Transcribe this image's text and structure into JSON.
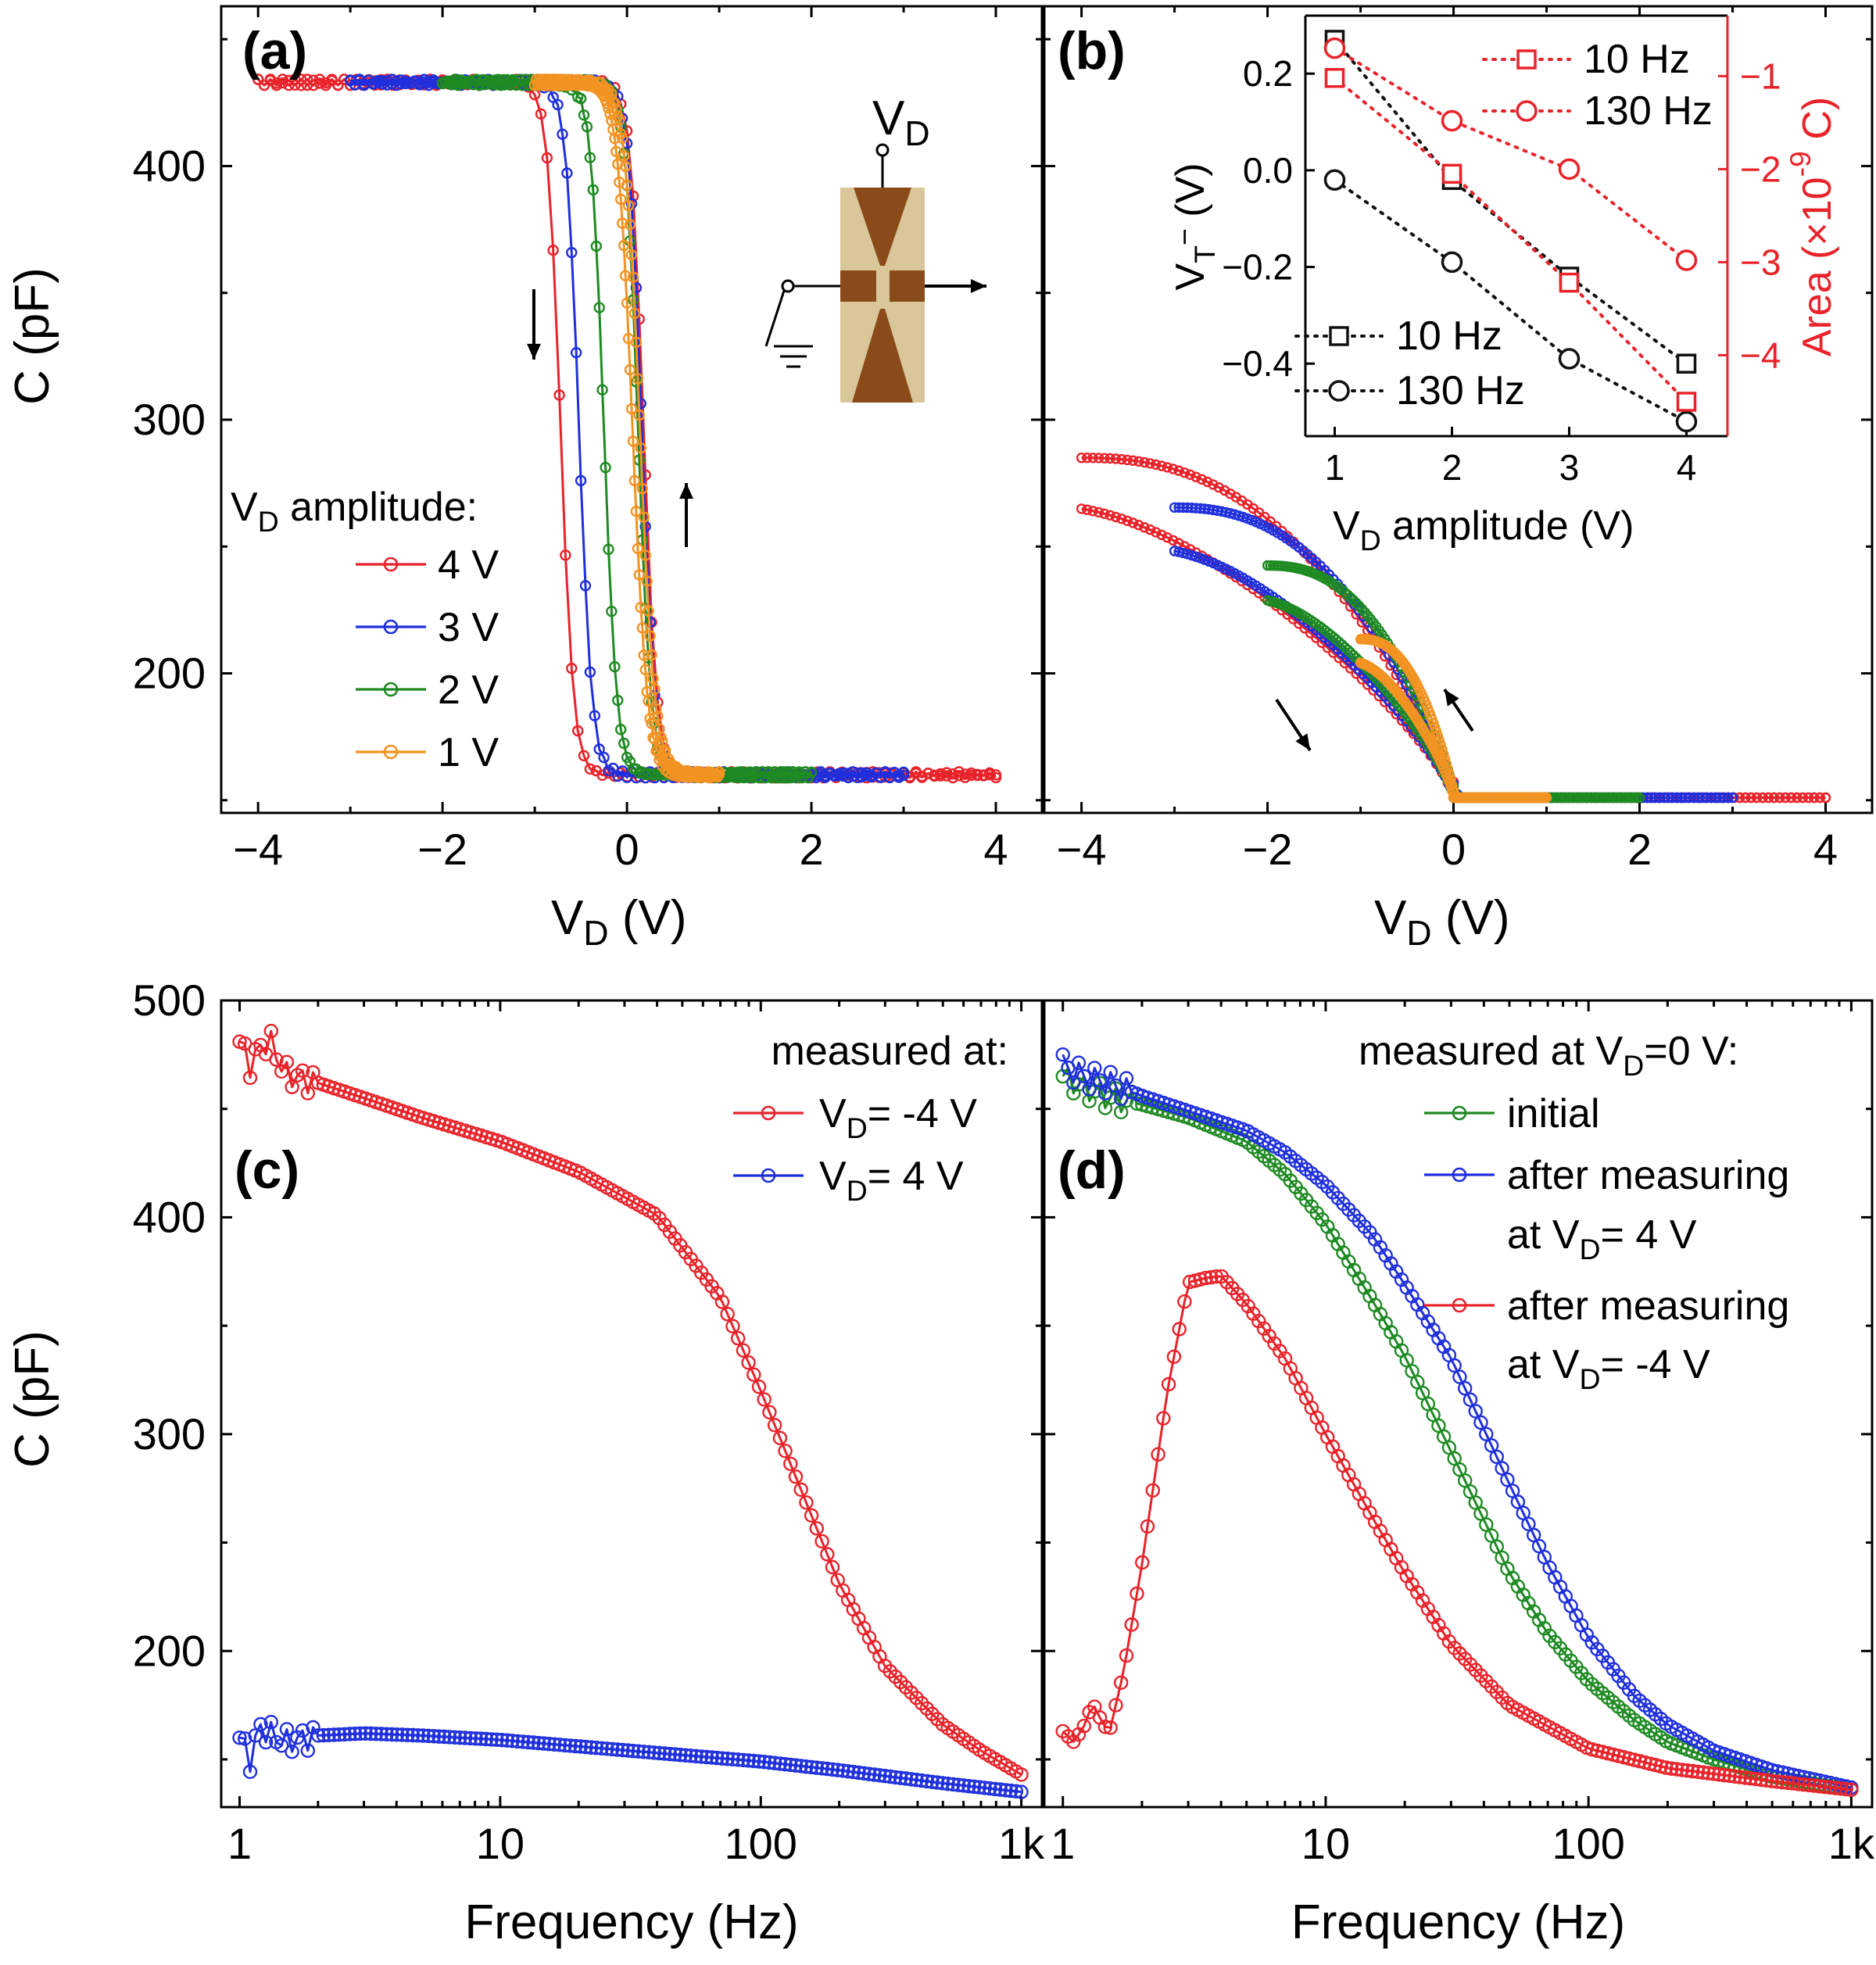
{
  "colors": {
    "red": "#e8232a",
    "blue": "#1f2fdc",
    "green": "#1e8a22",
    "orange": "#f39322",
    "black": "#111111",
    "electrode": "#8a4a1a",
    "substrate": "#d9c79a"
  },
  "chart_data": [
    {
      "id": "a",
      "type": "line",
      "panel_label": "(a)",
      "xlabel_main": "V",
      "xlabel_sub": "D",
      "xlabel_tail": " (V)",
      "ylabel": "C (pF)",
      "xlim": [
        -4.4,
        4.5
      ],
      "ylim": [
        145,
        463
      ],
      "xticks": [
        -4,
        -2,
        0,
        2,
        4
      ],
      "xtick_labels": [
        "−4",
        "−2",
        "0",
        "2",
        "4"
      ],
      "yticks": [
        200,
        300,
        400
      ],
      "ytick_labels": [
        "200",
        "300",
        "400"
      ],
      "legend_title_main": "V",
      "legend_title_sub": "D",
      "legend_title_tail": " amplitude:",
      "inset_label_main": "V",
      "inset_label_sub": "D",
      "series": [
        {
          "name": "4 V",
          "color": "red",
          "amp": 4,
          "vdown": -0.72,
          "vup": 0.18,
          "w": 0.07
        },
        {
          "name": "3 V",
          "color": "blue",
          "amp": 3,
          "vdown": -0.52,
          "vup": 0.16,
          "w": 0.07
        },
        {
          "name": "2 V",
          "color": "green",
          "amp": 2,
          "vdown": -0.25,
          "vup": 0.12,
          "w": 0.07
        },
        {
          "name": "1 V",
          "color": "orange",
          "amp": 1,
          "vdown": 0.06,
          "vup": 0.14,
          "w": 0.08
        }
      ],
      "c_high": 433,
      "c_low": 160
    },
    {
      "id": "b",
      "type": "line",
      "panel_label": "(b)",
      "xlabel_main": "V",
      "xlabel_sub": "D",
      "xlabel_tail": " (V)",
      "xlim": [
        -4.4,
        4.5
      ],
      "ylim": [
        145,
        463
      ],
      "xticks": [
        -4,
        -2,
        0,
        2,
        4
      ],
      "xtick_labels": [
        "−4",
        "−2",
        "0",
        "2",
        "4"
      ],
      "series": [
        {
          "color": "red",
          "amp": 4
        },
        {
          "color": "blue",
          "amp": 3
        },
        {
          "color": "green",
          "amp": 2
        },
        {
          "color": "orange",
          "amp": 1
        }
      ]
    },
    {
      "id": "b-inset",
      "type": "scatter",
      "xlabel_main": "V",
      "xlabel_sub": "D",
      "xlabel_tail": " amplitude (V)",
      "ylabel_main": "V",
      "ylabel_sub": "T",
      "ylabel_sup": "−",
      "ylabel_tail": " (V)",
      "y2label_main": "Area (×10",
      "y2label_sup": "-9",
      "y2label_tail": " C)",
      "x": [
        1,
        2,
        3,
        4
      ],
      "xlim": [
        0.75,
        4.35
      ],
      "xticks": [
        1,
        2,
        3,
        4
      ],
      "xtick_labels": [
        "1",
        "2",
        "3",
        "4"
      ],
      "ylim": [
        -0.55,
        0.32
      ],
      "yticks": [
        0.2,
        0.0,
        -0.2,
        -0.4
      ],
      "ytick_labels": [
        "0.2",
        "0.0",
        "−0.2",
        "−0.4"
      ],
      "y2lim": [
        -4.87,
        -0.35
      ],
      "y2ticks": [
        -1,
        -2,
        -3,
        -4
      ],
      "y2tick_labels": [
        "−1",
        "−2",
        "−3",
        "−4"
      ],
      "series": [
        {
          "name": "10 Hz",
          "axis": "left",
          "marker": "square",
          "color": "black",
          "values": [
            0.27,
            -0.02,
            -0.22,
            -0.4
          ]
        },
        {
          "name": "130 Hz",
          "axis": "left",
          "marker": "circle",
          "color": "black",
          "values": [
            -0.02,
            -0.19,
            -0.39,
            -0.52
          ]
        },
        {
          "name": "10 Hz",
          "axis": "right",
          "marker": "square",
          "color": "red",
          "values": [
            -1.02,
            -2.05,
            -3.22,
            -4.5
          ]
        },
        {
          "name": "130 Hz",
          "axis": "right",
          "marker": "circle",
          "color": "red",
          "values": [
            -0.7,
            -1.48,
            -2.0,
            -2.98
          ]
        }
      ]
    },
    {
      "id": "c",
      "type": "line",
      "panel_label": "(c)",
      "xlabel": "Frequency (Hz)",
      "ylabel": "C (pF)",
      "xscale": "log",
      "xlim": [
        0.85,
        1200
      ],
      "ylim": [
        128,
        500
      ],
      "xticks": [
        1,
        10,
        100,
        1000
      ],
      "xtick_labels": [
        "1",
        "10",
        "100",
        "1k"
      ],
      "yticks": [
        200,
        300,
        400,
        500
      ],
      "ytick_labels": [
        "200",
        "300",
        "400",
        "500"
      ],
      "legend_title": "measured at:",
      "series": [
        {
          "name_main": "V",
          "name_sub": "D",
          "name_tail": "= -4 V",
          "color": "red",
          "f": [
            1,
            1.1,
            1.2,
            1.3,
            1.5,
            2,
            3,
            5,
            10,
            20,
            40,
            70,
            100,
            150,
            200,
            300,
            500,
            700,
            1000
          ],
          "c": [
            481,
            470,
            478,
            482,
            466,
            462,
            455,
            446,
            435,
            421,
            401,
            363,
            320,
            268,
            231,
            193,
            166,
            154,
            143
          ]
        },
        {
          "name_main": "V",
          "name_sub": "D",
          "name_tail": "= 4 V",
          "color": "blue",
          "f": [
            1,
            1.1,
            1.2,
            1.3,
            1.5,
            2,
            3,
            5,
            10,
            20,
            50,
            100,
            200,
            500,
            1000
          ],
          "c": [
            160,
            150,
            165,
            162,
            158,
            161,
            162,
            161,
            159,
            156,
            152,
            149,
            145,
            139,
            135
          ]
        }
      ]
    },
    {
      "id": "d",
      "type": "line",
      "panel_label": "(d)",
      "xlabel": "Frequency (Hz)",
      "xscale": "log",
      "xlim": [
        0.85,
        1200
      ],
      "ylim": [
        128,
        500
      ],
      "xticks": [
        1,
        10,
        100,
        1000
      ],
      "xtick_labels": [
        "1",
        "10",
        "100",
        "1k"
      ],
      "legend_title_main": "measured at V",
      "legend_title_sub": "D",
      "legend_title_tail": "=0 V:",
      "series": [
        {
          "name": "initial",
          "color": "green",
          "f": [
            1,
            1.2,
            1.5,
            2,
            3,
            5,
            7,
            10,
            15,
            20,
            30,
            50,
            70,
            100,
            150,
            200,
            300,
            500,
            1000
          ],
          "c": [
            465,
            460,
            455,
            452,
            446,
            435,
            420,
            397,
            362,
            336,
            292,
            236,
            208,
            186,
            168,
            158,
            150,
            142,
            136
          ]
        },
        {
          "name_line1": "after measuring",
          "name_line2_main": "at V",
          "name_line2_sub": "D",
          "name_line2_tail": "= 4 V",
          "color": "blue",
          "f": [
            1,
            1.2,
            1.5,
            2,
            3,
            5,
            7,
            10,
            15,
            20,
            30,
            50,
            70,
            100,
            150,
            200,
            300,
            500,
            1000
          ],
          "c": [
            470,
            465,
            462,
            456,
            449,
            440,
            430,
            415,
            392,
            369,
            335,
            277,
            240,
            206,
            179,
            166,
            154,
            145,
            137
          ]
        },
        {
          "name_line1": "after measuring",
          "name_line2_main": "at V",
          "name_line2_sub": "D",
          "name_line2_tail": "= -4 V",
          "color": "red",
          "f": [
            1,
            1.1,
            1.2,
            1.3,
            1.4,
            1.5,
            1.7,
            2,
            2.5,
            3,
            3.5,
            4,
            5,
            7,
            10,
            15,
            20,
            30,
            50,
            100,
            200,
            500,
            1000
          ],
          "c": [
            163,
            158,
            165,
            176,
            168,
            162,
            190,
            240,
            320,
            370,
            372,
            373,
            360,
            335,
            300,
            262,
            236,
            203,
            175,
            155,
            146,
            140,
            136
          ]
        }
      ]
    }
  ]
}
